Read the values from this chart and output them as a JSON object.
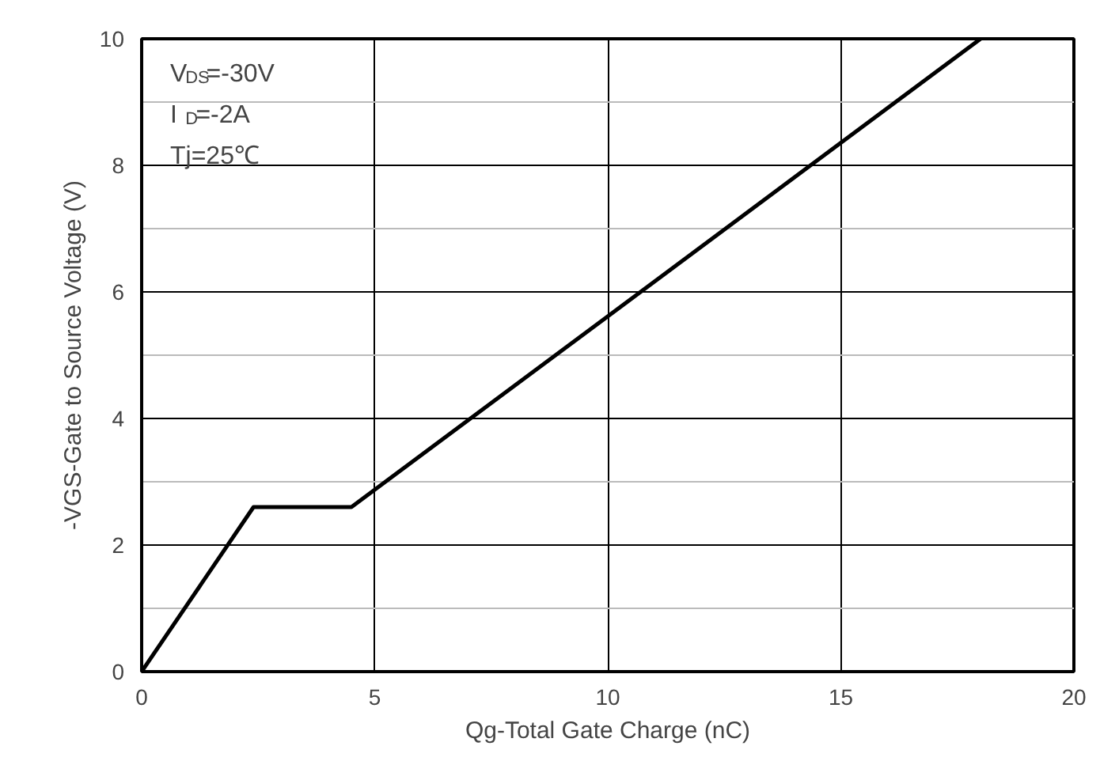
{
  "chart_data": {
    "type": "line",
    "xlabel": "Qg-Total Gate Charge (nC)",
    "ylabel": "-VGS-Gate to Source Voltage (V)",
    "x": [
      0,
      2.4,
      4.5,
      18
    ],
    "series": [
      {
        "color": "#000000",
        "values": [
          0,
          2.6,
          2.6,
          10
        ]
      }
    ],
    "xlim": [
      0,
      20
    ],
    "ylim": [
      0,
      10
    ],
    "xticks": [
      0,
      5,
      10,
      15,
      20
    ],
    "yticks": [
      0,
      2,
      4,
      6,
      8,
      10
    ],
    "grid": true,
    "marker": "none",
    "line_style": "solid",
    "annotations": [
      "V$_{DS}$=-30V",
      "I$_{D}$=-2A",
      "Tj=25℃"
    ]
  }
}
